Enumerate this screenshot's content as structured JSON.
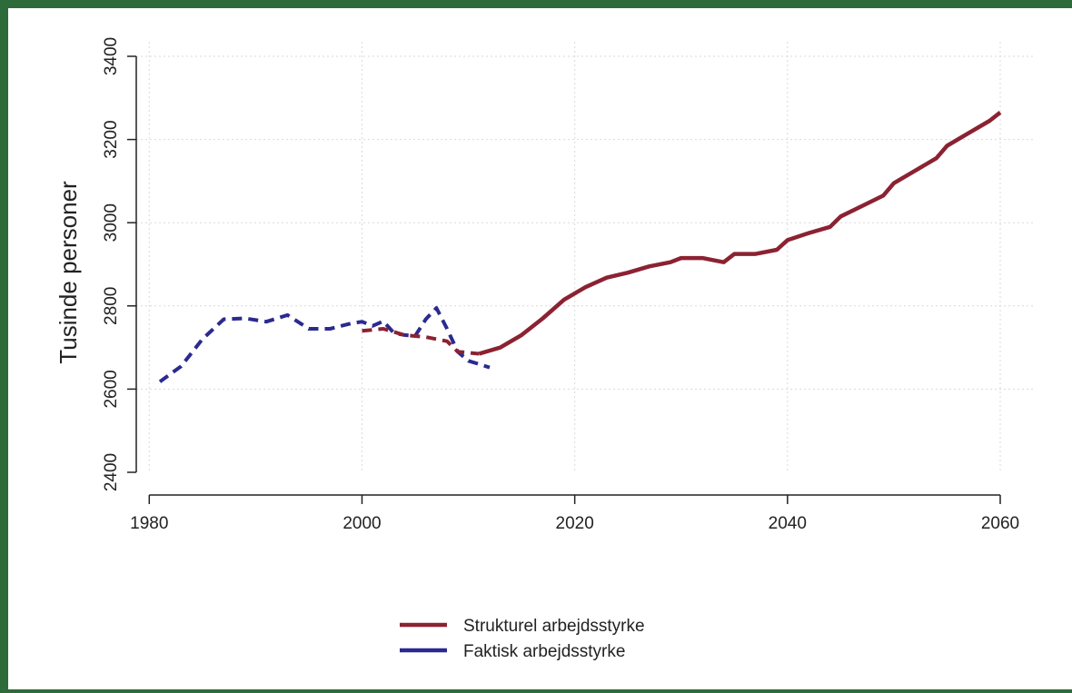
{
  "chart_data": {
    "type": "line",
    "title": "",
    "xlabel": "",
    "ylabel": "Tusinde personer",
    "xlim": [
      1980,
      2061
    ],
    "ylim": [
      2400,
      3400
    ],
    "x_ticks": [
      1980,
      2000,
      2020,
      2040,
      2060
    ],
    "y_ticks": [
      2400,
      2600,
      2800,
      3000,
      3200,
      3400
    ],
    "grid": true,
    "legend_position": "bottom-center",
    "series": [
      {
        "name": "Strukturel arbejdsstyrke",
        "color": "#8b2232",
        "style": "mixed",
        "points": [
          {
            "x": 2000,
            "y": 2740,
            "dash": true
          },
          {
            "x": 2002,
            "y": 2745,
            "dash": true
          },
          {
            "x": 2004,
            "y": 2730,
            "dash": true
          },
          {
            "x": 2006,
            "y": 2725,
            "dash": true
          },
          {
            "x": 2008,
            "y": 2715,
            "dash": true
          },
          {
            "x": 2009,
            "y": 2690,
            "dash": true
          },
          {
            "x": 2011,
            "y": 2685,
            "dash": false
          },
          {
            "x": 2013,
            "y": 2700,
            "dash": false
          },
          {
            "x": 2015,
            "y": 2730,
            "dash": false
          },
          {
            "x": 2017,
            "y": 2770,
            "dash": false
          },
          {
            "x": 2019,
            "y": 2815,
            "dash": false
          },
          {
            "x": 2021,
            "y": 2845,
            "dash": false
          },
          {
            "x": 2023,
            "y": 2868,
            "dash": false
          },
          {
            "x": 2025,
            "y": 2880,
            "dash": false
          },
          {
            "x": 2027,
            "y": 2895,
            "dash": false
          },
          {
            "x": 2029,
            "y": 2905,
            "dash": false
          },
          {
            "x": 2030,
            "y": 2915,
            "dash": false
          },
          {
            "x": 2032,
            "y": 2915,
            "dash": false
          },
          {
            "x": 2034,
            "y": 2905,
            "dash": false
          },
          {
            "x": 2035,
            "y": 2925,
            "dash": false
          },
          {
            "x": 2037,
            "y": 2925,
            "dash": false
          },
          {
            "x": 2039,
            "y": 2935,
            "dash": false
          },
          {
            "x": 2040,
            "y": 2958,
            "dash": false
          },
          {
            "x": 2042,
            "y": 2975,
            "dash": false
          },
          {
            "x": 2044,
            "y": 2990,
            "dash": false
          },
          {
            "x": 2045,
            "y": 3015,
            "dash": false
          },
          {
            "x": 2047,
            "y": 3040,
            "dash": false
          },
          {
            "x": 2049,
            "y": 3065,
            "dash": false
          },
          {
            "x": 2050,
            "y": 3095,
            "dash": false
          },
          {
            "x": 2052,
            "y": 3125,
            "dash": false
          },
          {
            "x": 2054,
            "y": 3155,
            "dash": false
          },
          {
            "x": 2055,
            "y": 3185,
            "dash": false
          },
          {
            "x": 2057,
            "y": 3215,
            "dash": false
          },
          {
            "x": 2059,
            "y": 3245,
            "dash": false
          },
          {
            "x": 2060,
            "y": 3265,
            "dash": false
          }
        ]
      },
      {
        "name": "Faktisk arbejdsstyrke",
        "color": "#2b2a8f",
        "style": "dashed",
        "points": [
          {
            "x": 1981,
            "y": 2618
          },
          {
            "x": 1983,
            "y": 2655
          },
          {
            "x": 1985,
            "y": 2720
          },
          {
            "x": 1987,
            "y": 2768
          },
          {
            "x": 1989,
            "y": 2770
          },
          {
            "x": 1991,
            "y": 2762
          },
          {
            "x": 1993,
            "y": 2778
          },
          {
            "x": 1995,
            "y": 2745
          },
          {
            "x": 1997,
            "y": 2745
          },
          {
            "x": 1999,
            "y": 2758
          },
          {
            "x": 2000,
            "y": 2762
          },
          {
            "x": 2001,
            "y": 2752
          },
          {
            "x": 2002,
            "y": 2763
          },
          {
            "x": 2003,
            "y": 2735
          },
          {
            "x": 2004,
            "y": 2730
          },
          {
            "x": 2005,
            "y": 2728
          },
          {
            "x": 2006,
            "y": 2768
          },
          {
            "x": 2007,
            "y": 2795
          },
          {
            "x": 2008,
            "y": 2745
          },
          {
            "x": 2009,
            "y": 2690
          },
          {
            "x": 2010,
            "y": 2668
          },
          {
            "x": 2011,
            "y": 2660
          },
          {
            "x": 2012,
            "y": 2652
          }
        ]
      }
    ]
  }
}
